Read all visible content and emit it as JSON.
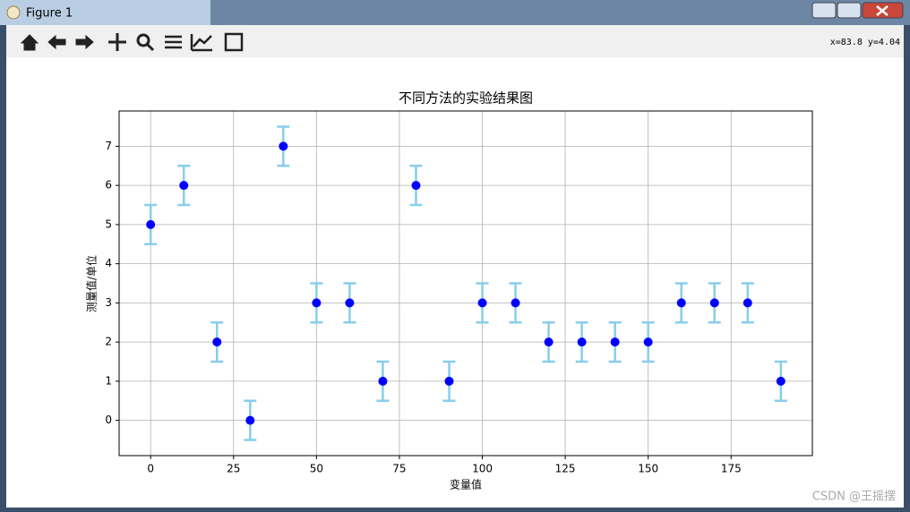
{
  "window": {
    "title": "Figure 1",
    "coordinates": "x=83.8 y=4.04"
  },
  "watermark": "CSDN @王摇摆",
  "chart_data": {
    "type": "errorbar",
    "title": "不同方法的实验结果图",
    "x_label": "变量值",
    "y_label": "测量值/单位",
    "x": [
      0,
      10,
      20,
      30,
      40,
      50,
      60,
      70,
      80,
      90,
      100,
      110,
      120,
      130,
      140,
      150,
      160,
      170,
      180,
      190
    ],
    "values": [
      5,
      6,
      2,
      0,
      7,
      3,
      3,
      1,
      6,
      1,
      3,
      3,
      2,
      2,
      2,
      2,
      3,
      3,
      3,
      1
    ],
    "errors": [
      0.5,
      0.5,
      0.5,
      0.5,
      0.5,
      0.5,
      0.5,
      0.5,
      0.5,
      0.5,
      0.5,
      0.5,
      0.5,
      0.5,
      0.5,
      0.5,
      0.5,
      0.5,
      0.5,
      0.5
    ],
    "color": "#0000ff",
    "error_color": "#87ceeb",
    "xlim": [
      -9.5,
      199.5
    ],
    "ylim": [
      -0.9,
      7.9
    ],
    "xticks": [
      0,
      25,
      50,
      75,
      100,
      125,
      150,
      175
    ],
    "yticks": [
      0,
      1,
      2,
      3,
      4,
      5,
      6,
      7
    ],
    "grid": true
  }
}
